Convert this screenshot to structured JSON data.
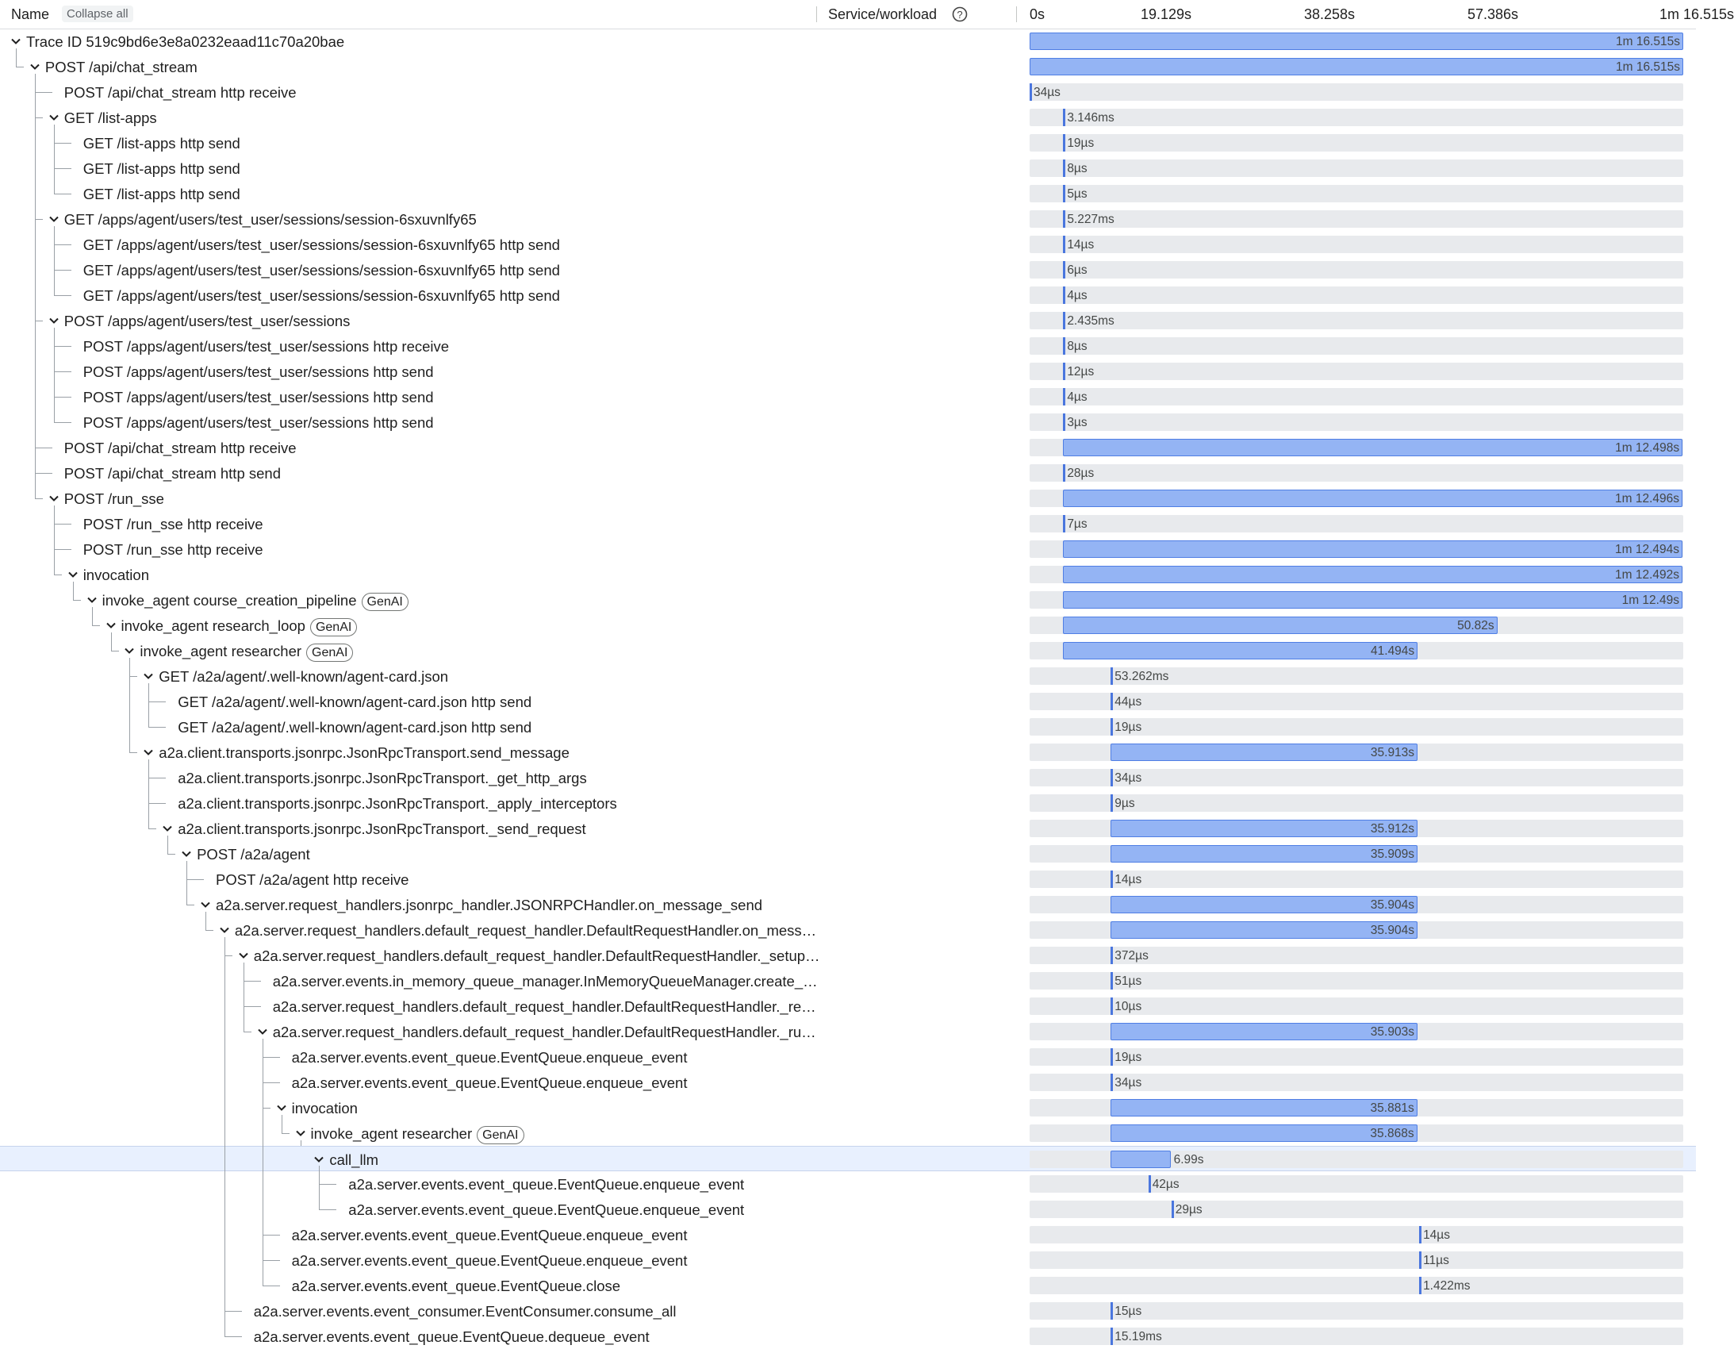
{
  "header": {
    "name": "Name",
    "collapse": "Collapse all",
    "service": "Service/workload"
  },
  "timeline_ticks": [
    {
      "value": 0,
      "label": "0s"
    },
    {
      "value": 19.129,
      "label": "19.129s"
    },
    {
      "value": 38.258,
      "label": "38.258s"
    },
    {
      "value": 57.386,
      "label": "57.386s"
    },
    {
      "value": 76.515,
      "label": "1m 16.515s"
    }
  ],
  "spans": [
    {
      "name": "Trace ID 519c9bd6e3e8a0232eaad11c70a20bae",
      "depth": 0,
      "expandable": true,
      "start": 0,
      "duration": {
        "value": 76.515,
        "label": "1m 16.515s"
      }
    },
    {
      "name": "POST /api/chat_stream",
      "depth": 1,
      "expandable": true,
      "start": 0,
      "duration": {
        "value": 76.515,
        "label": "1m 16.515s"
      }
    },
    {
      "name": "POST /api/chat_stream http receive",
      "depth": 2,
      "expandable": false,
      "start": 0,
      "duration": {
        "value": 3.4e-05,
        "label": "34µs"
      }
    },
    {
      "name": "GET /list-apps",
      "depth": 2,
      "expandable": true,
      "start": 3.93,
      "duration": {
        "value": 0.003146,
        "label": "3.146ms"
      }
    },
    {
      "name": "GET /list-apps http send",
      "depth": 3,
      "expandable": false,
      "start": 3.93,
      "duration": {
        "value": 1.9e-05,
        "label": "19µs"
      }
    },
    {
      "name": "GET /list-apps http send",
      "depth": 3,
      "expandable": false,
      "start": 3.93,
      "duration": {
        "value": 8e-06,
        "label": "8µs"
      }
    },
    {
      "name": "GET /list-apps http send",
      "depth": 3,
      "expandable": false,
      "start": 3.93,
      "duration": {
        "value": 5e-06,
        "label": "5µs"
      }
    },
    {
      "name": "GET /apps/agent/users/test_user/sessions/session-6sxuvnlfy65",
      "depth": 2,
      "expandable": true,
      "start": 3.93,
      "duration": {
        "value": 0.005227,
        "label": "5.227ms"
      }
    },
    {
      "name": "GET /apps/agent/users/test_user/sessions/session-6sxuvnlfy65 http send",
      "depth": 3,
      "expandable": false,
      "start": 3.93,
      "duration": {
        "value": 1.4e-05,
        "label": "14µs"
      }
    },
    {
      "name": "GET /apps/agent/users/test_user/sessions/session-6sxuvnlfy65 http send",
      "depth": 3,
      "expandable": false,
      "start": 3.93,
      "duration": {
        "value": 6e-06,
        "label": "6µs"
      }
    },
    {
      "name": "GET /apps/agent/users/test_user/sessions/session-6sxuvnlfy65 http send",
      "depth": 3,
      "expandable": false,
      "start": 3.93,
      "duration": {
        "value": 4e-06,
        "label": "4µs"
      }
    },
    {
      "name": "POST /apps/agent/users/test_user/sessions",
      "depth": 2,
      "expandable": true,
      "start": 3.93,
      "duration": {
        "value": 0.002435,
        "label": "2.435ms"
      }
    },
    {
      "name": "POST /apps/agent/users/test_user/sessions http receive",
      "depth": 3,
      "expandable": false,
      "start": 3.93,
      "duration": {
        "value": 8e-06,
        "label": "8µs"
      }
    },
    {
      "name": "POST /apps/agent/users/test_user/sessions http send",
      "depth": 3,
      "expandable": false,
      "start": 3.93,
      "duration": {
        "value": 1.2e-05,
        "label": "12µs"
      }
    },
    {
      "name": "POST /apps/agent/users/test_user/sessions http send",
      "depth": 3,
      "expandable": false,
      "start": 3.93,
      "duration": {
        "value": 4e-06,
        "label": "4µs"
      }
    },
    {
      "name": "POST /apps/agent/users/test_user/sessions http send",
      "depth": 3,
      "expandable": false,
      "start": 3.93,
      "duration": {
        "value": 3e-06,
        "label": "3µs"
      }
    },
    {
      "name": "POST /api/chat_stream http receive",
      "depth": 2,
      "expandable": false,
      "start": 3.93,
      "duration": {
        "value": 72.498,
        "label": "1m 12.498s"
      }
    },
    {
      "name": "POST /api/chat_stream http send",
      "depth": 2,
      "expandable": false,
      "start": 3.93,
      "duration": {
        "value": 2.8e-05,
        "label": "28µs"
      }
    },
    {
      "name": "POST /run_sse",
      "depth": 2,
      "expandable": true,
      "start": 3.93,
      "duration": {
        "value": 72.496,
        "label": "1m 12.496s"
      }
    },
    {
      "name": "POST /run_sse http receive",
      "depth": 3,
      "expandable": false,
      "start": 3.93,
      "duration": {
        "value": 7e-06,
        "label": "7µs"
      }
    },
    {
      "name": "POST /run_sse http receive",
      "depth": 3,
      "expandable": false,
      "start": 3.93,
      "duration": {
        "value": 72.494,
        "label": "1m 12.494s"
      }
    },
    {
      "name": "invocation",
      "depth": 3,
      "expandable": true,
      "start": 3.93,
      "duration": {
        "value": 72.492,
        "label": "1m 12.492s"
      }
    },
    {
      "name": "invoke_agent course_creation_pipeline",
      "badge": "GenAI",
      "depth": 4,
      "expandable": true,
      "start": 3.93,
      "duration": {
        "value": 72.49,
        "label": "1m 12.49s"
      }
    },
    {
      "name": "invoke_agent research_loop",
      "badge": "GenAI",
      "depth": 5,
      "expandable": true,
      "start": 3.93,
      "duration": {
        "value": 50.82,
        "label": "50.82s"
      }
    },
    {
      "name": "invoke_agent researcher",
      "badge": "GenAI",
      "depth": 6,
      "expandable": true,
      "start": 3.93,
      "duration": {
        "value": 41.494,
        "label": "41.494s"
      }
    },
    {
      "name": "GET /a2a/agent/.well-known/agent-card.json",
      "depth": 7,
      "expandable": true,
      "start": 9.5,
      "duration": {
        "value": 0.053262,
        "label": "53.262ms"
      }
    },
    {
      "name": "GET /a2a/agent/.well-known/agent-card.json http send",
      "depth": 8,
      "expandable": false,
      "start": 9.5,
      "duration": {
        "value": 4.4e-05,
        "label": "44µs"
      }
    },
    {
      "name": "GET /a2a/agent/.well-known/agent-card.json http send",
      "depth": 8,
      "expandable": false,
      "start": 9.5,
      "duration": {
        "value": 1.9e-05,
        "label": "19µs"
      }
    },
    {
      "name": "a2a.client.transports.jsonrpc.JsonRpcTransport.send_message",
      "depth": 7,
      "expandable": true,
      "start": 9.5,
      "duration": {
        "value": 35.913,
        "label": "35.913s"
      }
    },
    {
      "name": "a2a.client.transports.jsonrpc.JsonRpcTransport._get_http_args",
      "depth": 8,
      "expandable": false,
      "start": 9.5,
      "duration": {
        "value": 3.4e-05,
        "label": "34µs"
      }
    },
    {
      "name": "a2a.client.transports.jsonrpc.JsonRpcTransport._apply_interceptors",
      "depth": 8,
      "expandable": false,
      "start": 9.5,
      "duration": {
        "value": 9e-06,
        "label": "9µs"
      }
    },
    {
      "name": "a2a.client.transports.jsonrpc.JsonRpcTransport._send_request",
      "depth": 8,
      "expandable": true,
      "start": 9.5,
      "duration": {
        "value": 35.912,
        "label": "35.912s"
      }
    },
    {
      "name": "POST /a2a/agent",
      "depth": 9,
      "expandable": true,
      "start": 9.5,
      "duration": {
        "value": 35.909,
        "label": "35.909s"
      }
    },
    {
      "name": "POST /a2a/agent http receive",
      "depth": 10,
      "expandable": false,
      "start": 9.5,
      "duration": {
        "value": 1.4e-05,
        "label": "14µs"
      }
    },
    {
      "name": "a2a.server.request_handlers.jsonrpc_handler.JSONRPCHandler.on_message_send",
      "depth": 10,
      "expandable": true,
      "start": 9.5,
      "duration": {
        "value": 35.904,
        "label": "35.904s"
      }
    },
    {
      "name": "a2a.server.request_handlers.default_request_handler.DefaultRequestHandler.on_mess…",
      "depth": 11,
      "expandable": true,
      "start": 9.5,
      "duration": {
        "value": 35.904,
        "label": "35.904s"
      }
    },
    {
      "name": "a2a.server.request_handlers.default_request_handler.DefaultRequestHandler._setup…",
      "depth": 12,
      "expandable": true,
      "start": 9.5,
      "duration": {
        "value": 0.000372,
        "label": "372µs"
      }
    },
    {
      "name": "a2a.server.events.in_memory_queue_manager.InMemoryQueueManager.create_…",
      "depth": 13,
      "expandable": false,
      "start": 9.5,
      "duration": {
        "value": 5.1e-05,
        "label": "51µs"
      }
    },
    {
      "name": "a2a.server.request_handlers.default_request_handler.DefaultRequestHandler._re…",
      "depth": 13,
      "expandable": false,
      "start": 9.5,
      "duration": {
        "value": 1e-05,
        "label": "10µs"
      }
    },
    {
      "name": "a2a.server.request_handlers.default_request_handler.DefaultRequestHandler._ru…",
      "depth": 13,
      "expandable": true,
      "start": 9.5,
      "duration": {
        "value": 35.903,
        "label": "35.903s"
      }
    },
    {
      "name": "a2a.server.events.event_queue.EventQueue.enqueue_event",
      "depth": 14,
      "expandable": false,
      "start": 9.5,
      "duration": {
        "value": 1.9e-05,
        "label": "19µs"
      }
    },
    {
      "name": "a2a.server.events.event_queue.EventQueue.enqueue_event",
      "depth": 14,
      "expandable": false,
      "start": 9.5,
      "duration": {
        "value": 3.4e-05,
        "label": "34µs"
      }
    },
    {
      "name": "invocation",
      "depth": 14,
      "expandable": true,
      "start": 9.5,
      "duration": {
        "value": 35.881,
        "label": "35.881s"
      }
    },
    {
      "name": "invoke_agent researcher",
      "badge": "GenAI",
      "depth": 15,
      "expandable": true,
      "start": 9.5,
      "duration": {
        "value": 35.868,
        "label": "35.868s"
      }
    },
    {
      "name": "call_llm",
      "depth": 16,
      "expandable": true,
      "selected": true,
      "start": 9.5,
      "duration": {
        "value": 6.99,
        "label": "6.99s"
      }
    },
    {
      "name": "a2a.server.events.event_queue.EventQueue.enqueue_event",
      "depth": 17,
      "expandable": false,
      "start": 13.9,
      "duration": {
        "value": 4.2e-05,
        "label": "42µs"
      }
    },
    {
      "name": "a2a.server.events.event_queue.EventQueue.enqueue_event",
      "depth": 17,
      "expandable": false,
      "start": 16.6,
      "duration": {
        "value": 2.9e-05,
        "label": "29µs"
      }
    },
    {
      "name": "a2a.server.events.event_queue.EventQueue.enqueue_event",
      "depth": 14,
      "expandable": false,
      "start": 45.6,
      "duration": {
        "value": 1.4e-05,
        "label": "14µs"
      }
    },
    {
      "name": "a2a.server.events.event_queue.EventQueue.enqueue_event",
      "depth": 14,
      "expandable": false,
      "start": 45.6,
      "duration": {
        "value": 1.1e-05,
        "label": "11µs"
      }
    },
    {
      "name": "a2a.server.events.event_queue.EventQueue.close",
      "depth": 14,
      "expandable": false,
      "start": 45.6,
      "duration": {
        "value": 0.001422,
        "label": "1.422ms"
      }
    },
    {
      "name": "a2a.server.events.event_consumer.EventConsumer.consume_all",
      "depth": 12,
      "expandable": false,
      "start": 9.5,
      "duration": {
        "value": 1.5e-05,
        "label": "15µs"
      }
    },
    {
      "name": "a2a.server.events.event_queue.EventQueue.dequeue_event",
      "depth": 12,
      "expandable": false,
      "start": 9.5,
      "duration": {
        "value": 0.01519,
        "label": "15.19ms"
      }
    }
  ]
}
